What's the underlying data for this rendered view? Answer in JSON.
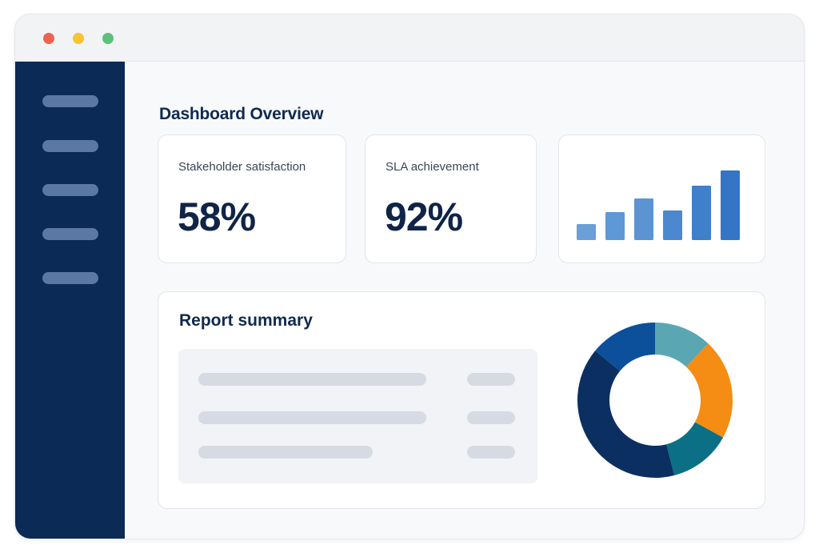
{
  "window": {
    "controls": [
      {
        "name": "close",
        "color": "#f0624f"
      },
      {
        "name": "minimize",
        "color": "#f7c531"
      },
      {
        "name": "maximize",
        "color": "#5cc17a"
      }
    ]
  },
  "sidebar": {
    "item_count": 5
  },
  "main": {
    "title": "Dashboard Overview",
    "kpis": [
      {
        "label": "Stakeholder satisfaction",
        "value": "58%"
      },
      {
        "label": "SLA achievement",
        "value": "92%"
      }
    ],
    "summary": {
      "title": "Report summary",
      "row_count": 3
    }
  },
  "chart_data": [
    {
      "type": "bar",
      "categories": [
        "",
        "",
        "",
        "",
        "",
        ""
      ],
      "values": [
        2,
        3.5,
        5.2,
        3.7,
        6.8,
        8.7
      ],
      "ylim": [
        0,
        9
      ],
      "grid": false,
      "colors": [
        "#6a9fd8",
        "#5f98d6",
        "#5b93d3",
        "#4c88cf",
        "#3f7fcb",
        "#3476c5"
      ]
    },
    {
      "type": "pie",
      "donut": true,
      "values": [
        12,
        21,
        13,
        40,
        14
      ],
      "colors": [
        "#5ba6b3",
        "#f58c13",
        "#0b6f86",
        "#0c2f61",
        "#0c4f9b"
      ],
      "start_angle_deg": 0
    }
  ]
}
